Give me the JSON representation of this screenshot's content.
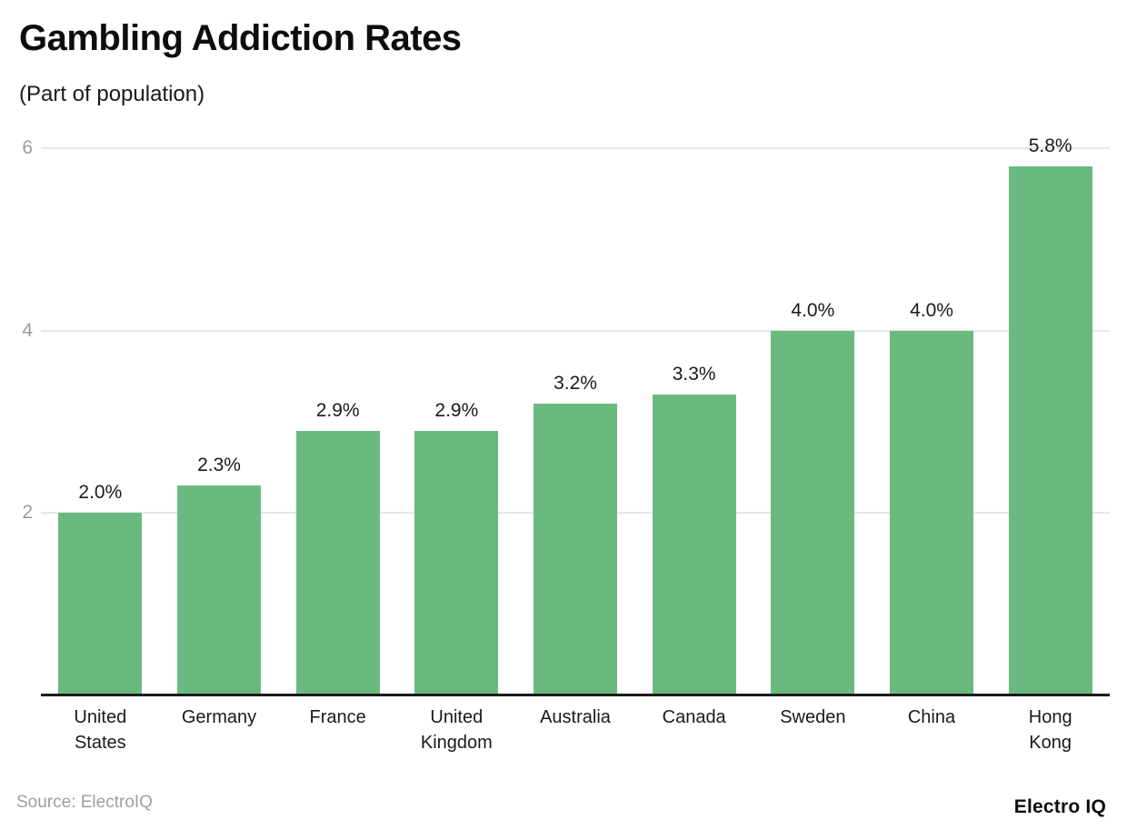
{
  "chart_data": {
    "type": "bar",
    "title": "Gambling Addiction Rates",
    "subtitle": "(Part of population)",
    "categories": [
      "United States",
      "Germany",
      "France",
      "United Kingdom",
      "Australia",
      "Canada",
      "Sweden",
      "China",
      "Hong Kong"
    ],
    "x_tick_lines": [
      [
        "United",
        "States"
      ],
      [
        "Germany"
      ],
      [
        "France"
      ],
      [
        "United",
        "Kingdom"
      ],
      [
        "Australia"
      ],
      [
        "Canada"
      ],
      [
        "Sweden"
      ],
      [
        "China"
      ],
      [
        "Hong",
        "Kong"
      ]
    ],
    "values": [
      2.0,
      2.3,
      2.9,
      2.9,
      3.2,
      3.3,
      4.0,
      4.0,
      5.8
    ],
    "value_labels": [
      "2.0%",
      "2.3%",
      "2.9%",
      "2.9%",
      "3.2%",
      "3.3%",
      "4.0%",
      "4.0%",
      "5.8%"
    ],
    "xlabel": "",
    "ylabel": "",
    "ylim": [
      0,
      6
    ],
    "yticks": [
      2,
      4,
      6
    ],
    "grid": "horizontal",
    "legend": "none"
  },
  "footer": {
    "source": "Source: ElectroIQ",
    "brand": "Electro IQ"
  },
  "colors": {
    "bar": "#6aba80",
    "grid": "#e7e7e7",
    "axis": "#1a1a1a",
    "tick_label": "#9b9b9b",
    "value_label": "#1a1a1a",
    "source_text": "#9e9e9e",
    "background": "#ffffff"
  }
}
